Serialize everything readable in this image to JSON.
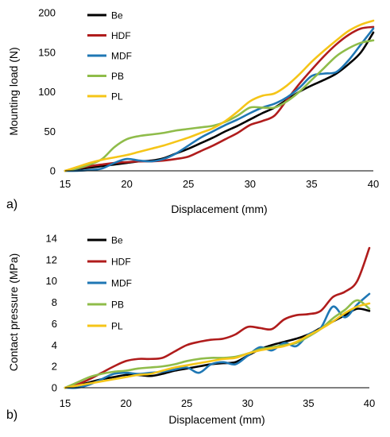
{
  "colors": {
    "Be": "#000000",
    "HDF": "#b01c1c",
    "MDF": "#1f77b4",
    "PB": "#8fbc4a",
    "PL": "#f5c518"
  },
  "chart_data": [
    {
      "type": "line",
      "panel_label": "a)",
      "xlabel": "Displacement (mm)",
      "ylabel": "Mounting load (N)",
      "xlim": [
        15,
        40
      ],
      "ylim": [
        0,
        200
      ],
      "xticks": [
        15,
        20,
        25,
        30,
        35,
        40
      ],
      "yticks": [
        0,
        50,
        100,
        150,
        200
      ],
      "legend_position": "top-left",
      "series": [
        {
          "name": "Be",
          "x": [
            15,
            16,
            17,
            18,
            19,
            20,
            21,
            22,
            23,
            24,
            25,
            26,
            27,
            28,
            29,
            30,
            31,
            32,
            33,
            34,
            35,
            36,
            37,
            38,
            39,
            40
          ],
          "values": [
            0,
            2,
            4,
            6,
            8,
            10,
            12,
            13,
            16,
            22,
            28,
            35,
            42,
            50,
            57,
            65,
            73,
            80,
            90,
            100,
            108,
            115,
            123,
            135,
            150,
            175
          ]
        },
        {
          "name": "HDF",
          "x": [
            15,
            16,
            17,
            18,
            19,
            20,
            21,
            22,
            23,
            24,
            25,
            26,
            27,
            28,
            29,
            30,
            31,
            32,
            33,
            34,
            35,
            36,
            37,
            38,
            39,
            40
          ],
          "values": [
            0,
            3,
            6,
            8,
            10,
            11,
            12,
            12,
            13,
            15,
            18,
            25,
            32,
            40,
            48,
            58,
            63,
            70,
            90,
            110,
            128,
            145,
            160,
            172,
            180,
            182
          ]
        },
        {
          "name": "MDF",
          "x": [
            15,
            16,
            17,
            18,
            19,
            20,
            21,
            22,
            23,
            24,
            25,
            26,
            27,
            28,
            29,
            30,
            31,
            32,
            33,
            34,
            35,
            36,
            37,
            38,
            39,
            40
          ],
          "values": [
            0,
            0,
            1,
            3,
            10,
            15,
            13,
            12,
            15,
            22,
            32,
            42,
            50,
            58,
            65,
            73,
            80,
            85,
            93,
            105,
            120,
            123,
            125,
            140,
            160,
            180
          ]
        },
        {
          "name": "PB",
          "x": [
            15,
            16,
            17,
            18,
            19,
            20,
            21,
            22,
            23,
            24,
            25,
            26,
            27,
            28,
            29,
            30,
            31,
            32,
            33,
            34,
            35,
            36,
            37,
            38,
            39,
            40
          ],
          "values": [
            0,
            3,
            8,
            15,
            30,
            40,
            44,
            46,
            48,
            51,
            53,
            55,
            57,
            62,
            70,
            80,
            80,
            80,
            88,
            100,
            115,
            130,
            145,
            155,
            162,
            165
          ]
        },
        {
          "name": "PL",
          "x": [
            15,
            16,
            17,
            18,
            19,
            20,
            21,
            22,
            23,
            24,
            25,
            26,
            27,
            28,
            29,
            30,
            31,
            32,
            33,
            34,
            35,
            36,
            37,
            38,
            39,
            40
          ],
          "values": [
            0,
            5,
            10,
            14,
            17,
            20,
            24,
            28,
            32,
            37,
            42,
            48,
            54,
            63,
            75,
            88,
            95,
            98,
            108,
            122,
            138,
            152,
            165,
            177,
            185,
            190
          ]
        }
      ]
    },
    {
      "type": "line",
      "panel_label": "b)",
      "xlabel": "Displacement (mm)",
      "ylabel": "Contact pressure (MPa)",
      "xlim": [
        15,
        40
      ],
      "ylim": [
        0,
        14
      ],
      "xticks": [
        15,
        20,
        25,
        30,
        35,
        40
      ],
      "yticks": [
        0,
        2,
        4,
        6,
        8,
        10,
        12,
        14
      ],
      "legend_position": "top-left",
      "series": [
        {
          "name": "Be",
          "x": [
            15,
            16,
            17,
            18,
            19,
            20,
            21,
            22,
            23,
            24,
            25,
            26,
            27,
            28,
            29,
            30,
            31,
            32,
            33,
            34,
            35,
            36,
            37,
            38,
            39,
            40
          ],
          "values": [
            0,
            0.2,
            0.5,
            0.8,
            1.0,
            1.2,
            1.2,
            1.1,
            1.3,
            1.6,
            1.8,
            2.0,
            2.2,
            2.3,
            2.4,
            3.0,
            3.6,
            4.0,
            4.3,
            4.6,
            5.0,
            5.6,
            6.2,
            6.8,
            7.4,
            7.2
          ]
        },
        {
          "name": "HDF",
          "x": [
            15,
            16,
            17,
            18,
            19,
            20,
            21,
            22,
            23,
            24,
            25,
            26,
            27,
            28,
            29,
            30,
            31,
            32,
            33,
            34,
            35,
            36,
            37,
            38,
            39,
            40
          ],
          "values": [
            0,
            0.3,
            0.8,
            1.4,
            2.0,
            2.5,
            2.7,
            2.7,
            2.8,
            3.4,
            4.0,
            4.3,
            4.5,
            4.6,
            5.0,
            5.7,
            5.6,
            5.5,
            6.4,
            6.8,
            6.9,
            7.2,
            8.5,
            9.0,
            10.0,
            13.1
          ]
        },
        {
          "name": "MDF",
          "x": [
            15,
            16,
            17,
            18,
            19,
            20,
            21,
            22,
            23,
            24,
            25,
            26,
            27,
            28,
            29,
            30,
            31,
            32,
            33,
            34,
            35,
            36,
            37,
            38,
            39,
            40
          ],
          "values": [
            0,
            0,
            0.3,
            0.8,
            1.3,
            1.4,
            1.3,
            1.4,
            1.5,
            1.7,
            1.9,
            1.4,
            2.2,
            2.4,
            2.2,
            3.0,
            3.8,
            3.5,
            4.2,
            3.9,
            5.0,
            5.6,
            7.6,
            6.6,
            7.8,
            8.8
          ]
        },
        {
          "name": "PB",
          "x": [
            15,
            16,
            17,
            18,
            19,
            20,
            21,
            22,
            23,
            24,
            25,
            26,
            27,
            28,
            29,
            30,
            31,
            32,
            33,
            34,
            35,
            36,
            37,
            38,
            39,
            40
          ],
          "values": [
            0,
            0.5,
            1.0,
            1.3,
            1.5,
            1.6,
            1.8,
            1.9,
            2.0,
            2.2,
            2.5,
            2.7,
            2.8,
            2.8,
            2.9,
            3.2,
            3.6,
            3.8,
            4.0,
            4.2,
            4.8,
            5.5,
            6.5,
            7.3,
            8.2,
            7.4
          ]
        },
        {
          "name": "PL",
          "x": [
            15,
            16,
            17,
            18,
            19,
            20,
            21,
            22,
            23,
            24,
            25,
            26,
            27,
            28,
            29,
            30,
            31,
            32,
            33,
            34,
            35,
            36,
            37,
            38,
            39,
            40
          ],
          "values": [
            0,
            0.2,
            0.4,
            0.6,
            0.8,
            1.0,
            1.2,
            1.3,
            1.6,
            1.9,
            2.1,
            2.3,
            2.5,
            2.7,
            2.8,
            3.2,
            3.5,
            3.7,
            3.9,
            4.3,
            4.9,
            5.5,
            6.2,
            7.0,
            7.6,
            7.9
          ]
        }
      ]
    }
  ]
}
